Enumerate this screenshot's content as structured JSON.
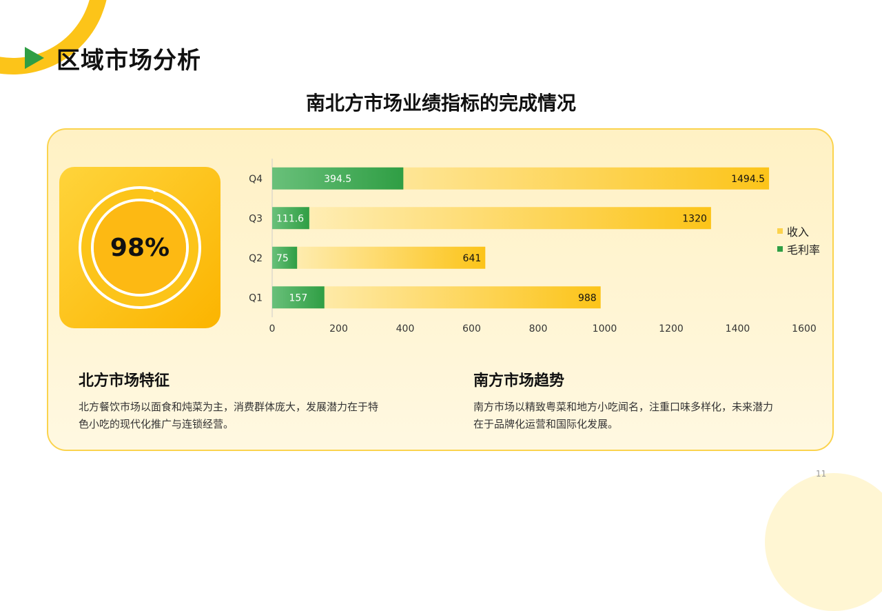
{
  "header": {
    "title": "区域市场分析"
  },
  "subtitle": "南北方市场业绩指标的完成情况",
  "kpi": {
    "value": "98%",
    "percent": 98,
    "track_color": "#ffffff",
    "accent": "#fcc419"
  },
  "chart_data": {
    "type": "bar",
    "orientation": "horizontal",
    "categories": [
      "Q1",
      "Q2",
      "Q3",
      "Q4"
    ],
    "series": [
      {
        "name": "收入",
        "values": [
          988,
          641,
          1320,
          1494.5
        ],
        "color": "#fcc419"
      },
      {
        "name": "毛利率",
        "values": [
          157,
          75,
          111.6,
          394.5
        ],
        "color": "#2f9e44"
      }
    ],
    "xlim": [
      0,
      1600
    ],
    "xticks": [
      "0",
      "200",
      "400",
      "600",
      "800",
      "1000",
      "1200",
      "1400",
      "1600"
    ],
    "legend": "right",
    "grid": false
  },
  "north": {
    "title": "北方市场特征",
    "lines": [
      "北方餐饮市场以面食和炖菜为主，消费群体庞大，发展潜力在于特",
      "色小吃的现代化推广与连锁经营。"
    ]
  },
  "south": {
    "title": "南方市场趋势",
    "lines": [
      "南方市场以精致粤菜和地方小吃闻名，注重口味多样化，未来潜力",
      "在于品牌化运营和国际化发展。"
    ]
  },
  "page_number": "11"
}
